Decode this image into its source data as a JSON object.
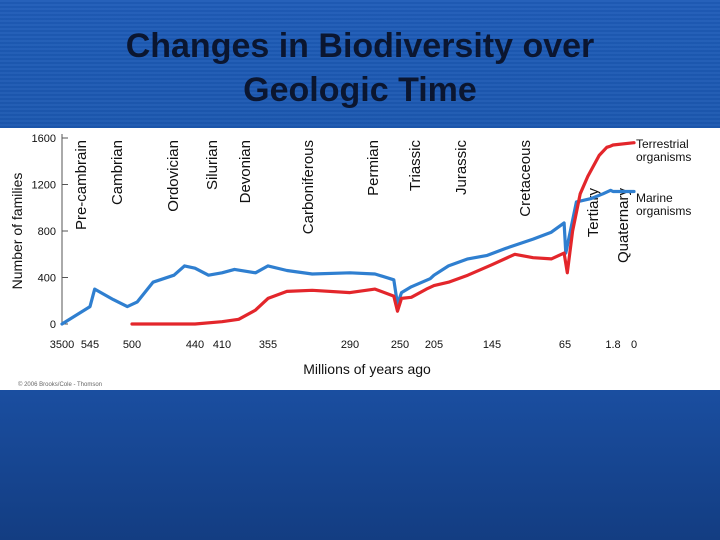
{
  "slide": {
    "title_line1": "Changes in Biodiversity over",
    "title_line2": "Geologic Time"
  },
  "colors": {
    "terrestrial": "#e3262b",
    "marine": "#2f7fd0",
    "axis": "#555555",
    "text": "#111111"
  },
  "chart_data": {
    "type": "line",
    "title": "",
    "xlabel": "Millions of years ago",
    "ylabel": "Number of families",
    "ylim": [
      0,
      1600
    ],
    "yticks": [
      0,
      400,
      800,
      1200,
      1600
    ],
    "x_tick_labels": [
      "3500",
      "545",
      "500",
      "440",
      "410",
      "355",
      "290",
      "250",
      "205",
      "145",
      "65",
      "1.8",
      "0"
    ],
    "periods": [
      "Pre-cambrain",
      "Cambrian",
      "Ordovician",
      "Silurian",
      "Devonian",
      "Carboniferous",
      "Permian",
      "Triassic",
      "Jurassic",
      "Cretaceous",
      "Tertiary",
      "Quaternary"
    ],
    "credit": "© 2006 Brooks/Cole - Thomson",
    "series": [
      {
        "name": "Marine organisms",
        "points": [
          [
            "3500",
            0
          ],
          [
            "545",
            150
          ],
          [
            "540",
            300
          ],
          [
            "520",
            210
          ],
          [
            "505",
            150
          ],
          [
            "495",
            190
          ],
          [
            "480",
            360
          ],
          [
            "460",
            420
          ],
          [
            "450",
            500
          ],
          [
            "440",
            480
          ],
          [
            "425",
            420
          ],
          [
            "410",
            440
          ],
          [
            "395",
            470
          ],
          [
            "370",
            440
          ],
          [
            "355",
            500
          ],
          [
            "340",
            460
          ],
          [
            "320",
            430
          ],
          [
            "290",
            440
          ],
          [
            "270",
            430
          ],
          [
            "255",
            380
          ],
          [
            "252",
            170
          ],
          [
            "248",
            270
          ],
          [
            "235",
            320
          ],
          [
            "210",
            390
          ],
          [
            "205",
            420
          ],
          [
            "190",
            500
          ],
          [
            "170",
            560
          ],
          [
            "150",
            590
          ],
          [
            "130",
            650
          ],
          [
            "100",
            730
          ],
          [
            "80",
            790
          ],
          [
            "66",
            870
          ],
          [
            "64",
            610
          ],
          [
            "50",
            1050
          ],
          [
            "30",
            1080
          ],
          [
            "15",
            1120
          ],
          [
            "5",
            1150
          ],
          [
            "1.8",
            1140
          ],
          [
            "0",
            1140
          ]
        ]
      },
      {
        "name": "Terrestrial organisms",
        "points": [
          [
            "500",
            0
          ],
          [
            "440",
            0
          ],
          [
            "410",
            20
          ],
          [
            "390",
            40
          ],
          [
            "370",
            120
          ],
          [
            "355",
            220
          ],
          [
            "340",
            280
          ],
          [
            "320",
            290
          ],
          [
            "290",
            270
          ],
          [
            "270",
            300
          ],
          [
            "255",
            240
          ],
          [
            "252",
            110
          ],
          [
            "248",
            220
          ],
          [
            "235",
            230
          ],
          [
            "215",
            300
          ],
          [
            "205",
            330
          ],
          [
            "190",
            360
          ],
          [
            "170",
            420
          ],
          [
            "145",
            510
          ],
          [
            "120",
            600
          ],
          [
            "100",
            570
          ],
          [
            "80",
            560
          ],
          [
            "66",
            610
          ],
          [
            "62",
            440
          ],
          [
            "55",
            800
          ],
          [
            "45",
            1120
          ],
          [
            "35",
            1270
          ],
          [
            "20",
            1450
          ],
          [
            "10",
            1520
          ],
          [
            "5",
            1530
          ],
          [
            "1.8",
            1540
          ],
          [
            "0",
            1560
          ]
        ]
      }
    ],
    "legend_position": "right"
  }
}
